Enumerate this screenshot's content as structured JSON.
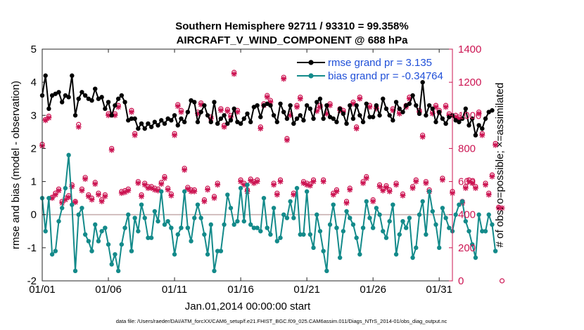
{
  "chart_data": {
    "type": "line",
    "title": "Southern Hemisphere 92711 / 93310 = 99.358%",
    "subtitle": "AIRCRAFT_V_WIND_COMPONENT @ 688 hPa",
    "xlabel": "Jan.01,2014 00:00:00 start",
    "ylabel": "rmse and bias (model - observation)",
    "y2label": "# of obs: o=possible; ×=assimilated",
    "footnote": "data file: /Users/raeder/DAI/ATM_forcXX/CAM6_setup/f.e21.FHIST_BGC.f09_025.CAM6assim.011/Diags_NTrS_2014-01/obs_diag_output.nc",
    "xlim": [
      1,
      32
    ],
    "ylim": [
      -2,
      5
    ],
    "y2lim": [
      0,
      1400
    ],
    "xticks": [
      1,
      6,
      11,
      16,
      21,
      26,
      31
    ],
    "xtick_labels": [
      "01/01",
      "01/06",
      "01/11",
      "01/16",
      "01/21",
      "01/26",
      "01/31"
    ],
    "yticks": [
      -2,
      -1,
      0,
      1,
      2,
      3,
      4,
      5
    ],
    "ytick_labels": [
      "-2",
      "-1",
      "0",
      "1",
      "2",
      "3",
      "4",
      "5"
    ],
    "y2ticks": [
      0,
      200,
      400,
      600,
      800,
      1000,
      1200,
      1400
    ],
    "y2tick_labels": [
      "0",
      "200",
      "400",
      "600",
      "800",
      "1000",
      "1200",
      "1400"
    ],
    "colors": {
      "rmse": "#000000",
      "bias": "#138a8a",
      "obs": "#cc1452",
      "zero_line": "#c8b0b0",
      "legend_text": "#1f4fd8"
    },
    "series": [
      {
        "name": "rmse grand pr = 3.135",
        "axis": "left",
        "start": 1.0,
        "step": 0.25,
        "values": [
          3.6,
          4.2,
          3.2,
          3.6,
          3.65,
          3.7,
          3.4,
          3.6,
          3.55,
          4.2,
          3.0,
          3.5,
          3.7,
          3.6,
          3.5,
          3.45,
          3.8,
          3.5,
          3.55,
          3.2,
          3.4,
          3.0,
          3.3,
          3.5,
          3.6,
          3.4,
          2.85,
          2.9,
          2.9,
          2.6,
          2.75,
          2.6,
          2.75,
          2.65,
          2.8,
          2.7,
          2.85,
          2.75,
          2.9,
          2.85,
          3.0,
          2.7,
          2.9,
          2.8,
          3.1,
          3.45,
          3.4,
          2.8,
          3.1,
          3.3,
          3.0,
          2.8,
          3.4,
          2.75,
          2.9,
          3.0,
          2.75,
          2.85,
          3.2,
          2.8,
          2.75,
          2.9,
          3.05,
          2.8,
          3.25,
          3.3,
          2.95,
          3.3,
          3.35,
          3.3,
          3.0,
          2.8,
          3.35,
          3.1,
          2.9,
          3.3,
          2.75,
          2.9,
          3.0,
          2.85,
          3.3,
          3.2,
          2.9,
          3.4,
          3.5,
          2.9,
          3.3,
          2.95,
          2.9,
          2.8,
          3.2,
          3.05,
          2.75,
          3.3,
          2.9,
          3.3,
          3.0,
          2.8,
          3.35,
          2.95,
          2.95,
          3.3,
          3.0,
          3.5,
          3.2,
          3.0,
          2.85,
          3.4,
          3.2,
          3.1,
          3.3,
          3.35,
          3.6,
          3.3,
          3.05,
          4.0,
          3.0,
          3.3,
          3.2,
          2.8,
          3.1,
          2.9,
          2.75,
          2.95,
          3.0,
          2.85,
          2.8,
          2.9,
          3.2,
          2.7,
          2.9,
          2.4,
          2.7,
          2.6,
          2.9,
          3.1,
          3.15
        ]
      },
      {
        "name": "bias grand pr = -0.34764",
        "axis": "left",
        "start": 1.0,
        "step": 0.25,
        "values": [
          0.5,
          -0.5,
          0.5,
          -1.2,
          -1.1,
          -0.2,
          0.2,
          0.8,
          1.8,
          0.3,
          -1.7,
          0.0,
          0.2,
          -0.6,
          -0.8,
          -1.1,
          -0.3,
          -0.8,
          -0.5,
          -0.4,
          -0.9,
          -1.5,
          -1.2,
          -1.7,
          -0.9,
          -0.4,
          0.0,
          -1.1,
          -0.1,
          -0.5,
          0.3,
          -0.1,
          -0.7,
          -0.7,
          0.1,
          -0.2,
          0.7,
          -0.3,
          -0.2,
          -0.4,
          -1.2,
          -0.6,
          -0.4,
          0.7,
          -0.4,
          -0.8,
          -0.1,
          0.3,
          -0.1,
          -0.6,
          -1.2,
          -0.3,
          -1.7,
          -1.1,
          -1.1,
          -0.3,
          0.6,
          0.2,
          -0.3,
          -0.2,
          0.8,
          -0.2,
          0.9,
          -0.3,
          -0.4,
          -0.4,
          -0.5,
          0.5,
          -0.4,
          -0.6,
          0.2,
          -0.8,
          -0.7,
          0.0,
          -0.1,
          0.4,
          -0.1,
          0.8,
          -0.6,
          -0.6,
          0.7,
          -0.6,
          -1.0,
          0.0,
          -0.5,
          -1.1,
          -1.7,
          -0.3,
          0.3,
          -0.4,
          -1.3,
          -0.5,
          0.1,
          -0.1,
          -0.3,
          -0.7,
          -1.2,
          -0.4,
          0.4,
          -0.1,
          -0.4,
          0.2,
          0.0,
          -0.5,
          -0.7,
          -0.2,
          0.3,
          -1.2,
          -0.6,
          -0.2,
          -0.4,
          -0.1,
          -1.3,
          -1.0,
          0.0,
          0.4,
          -0.6,
          0.7,
          0.1,
          -0.3,
          -1.0,
          0.2,
          -0.1,
          -0.4,
          -0.5,
          0.0,
          0.3,
          0.4,
          -0.2,
          -0.5,
          -0.9,
          -1.3,
          0.0,
          -0.5,
          -0.5,
          0.0,
          -0.3,
          -1.1
        ]
      },
      {
        "name": "# of obs assimilated",
        "axis": "right",
        "start": 1.0,
        "step": 0.25,
        "values": [
          815,
          970,
          985,
          500,
          520,
          545,
          470,
          490,
          505,
          570,
          475,
          930,
          545,
          615,
          510,
          490,
          585,
          520,
          480,
          510,
          1000,
          790,
          1000,
          1050,
          530,
          535,
          545,
          1020,
          880,
          590,
          510,
          580,
          560,
          560,
          550,
          545,
          585,
          620,
          550,
          515,
          880,
          1055,
          1020,
          670,
          555,
          540,
          540,
          1010,
          1065,
          480,
          550,
          980,
          500,
          580,
          1030,
          930,
          1025,
          990,
          1250,
          1020,
          600,
          580,
          540,
          605,
          590,
          600,
          920,
          1060,
          1110,
          1080,
          580,
          520,
          600,
          1220,
          850,
          1000,
          520,
          1050,
          1100,
          590,
          580,
          575,
          600,
          1025,
          1050,
          600,
          1010,
          1060,
          520,
          540,
          1030,
          1020,
          470,
          550,
          1070,
          920,
          1100,
          590,
          620,
          1050,
          480,
          1040,
          570,
          545,
          565,
          540,
          1030,
          580,
          1010,
          515,
          1050,
          1100,
          560,
          600,
          1020,
          870,
          590,
          540,
          1010,
          1050,
          1020,
          610,
          1050,
          1000,
          530,
          990,
          980,
          470,
          560,
          600,
          590,
          560,
          1010,
          880,
          580,
          520,
          630,
          820,
          440,
          440
        ]
      },
      {
        "name": "# of obs possible",
        "axis": "right",
        "start": 1.0,
        "step": 0.25,
        "values": [
          825,
          975,
          995,
          505,
          530,
          555,
          480,
          500,
          515,
          580,
          480,
          945,
          555,
          625,
          520,
          500,
          595,
          530,
          490,
          520,
          1010,
          800,
          1010,
          1060,
          540,
          545,
          555,
          1030,
          890,
          600,
          520,
          590,
          570,
          570,
          560,
          555,
          595,
          630,
          560,
          525,
          890,
          1065,
          1030,
          680,
          565,
          550,
          550,
          1020,
          1075,
          490,
          560,
          990,
          510,
          590,
          1040,
          940,
          1035,
          1000,
          1260,
          1030,
          610,
          590,
          550,
          615,
          600,
          610,
          930,
          1070,
          1120,
          1090,
          590,
          530,
          610,
          1230,
          860,
          1010,
          530,
          1060,
          1110,
          600,
          590,
          585,
          610,
          1035,
          1060,
          610,
          1020,
          1070,
          530,
          550,
          1040,
          1030,
          480,
          560,
          1080,
          930,
          1110,
          600,
          630,
          1060,
          490,
          1050,
          580,
          555,
          575,
          550,
          1040,
          590,
          1020,
          525,
          1060,
          1110,
          570,
          610,
          1030,
          880,
          600,
          550,
          1020,
          1060,
          1030,
          620,
          1060,
          1010,
          540,
          1000,
          990,
          480,
          570,
          610,
          600,
          570,
          1020,
          890,
          590,
          530,
          640,
          830,
          445,
          0
        ]
      }
    ]
  }
}
